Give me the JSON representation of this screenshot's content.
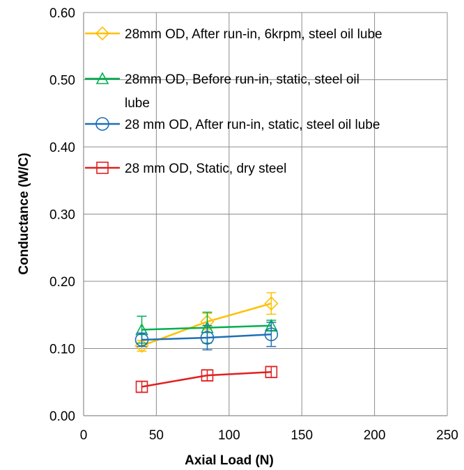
{
  "chart_data": {
    "type": "line",
    "xlabel": "Axial Load (N)",
    "ylabel": "Conductance (W/C)",
    "xlim": [
      0,
      250
    ],
    "ylim": [
      0,
      0.6
    ],
    "x_ticks": [
      "0",
      "50",
      "100",
      "150",
      "200",
      "250"
    ],
    "y_ticks": [
      "0.00",
      "0.10",
      "0.20",
      "0.30",
      "0.40",
      "0.50",
      "0.60"
    ],
    "grid": true,
    "legend_position": "top-right",
    "series": [
      {
        "name": "28mm OD, After run-in, 6krpm, steel oil lube",
        "legend_lines": [
          "28mm OD, After run-in, 6krpm, steel oil lube"
        ],
        "marker": "diamond",
        "color": "#FFC000",
        "x": [
          40,
          85,
          129
        ],
        "y": [
          0.104,
          0.14,
          0.167
        ],
        "err": [
          0.008,
          0.012,
          0.016
        ]
      },
      {
        "name": "28mm OD, Before run-in, static, steel oil lube",
        "legend_lines": [
          "28mm OD, Before run-in, static, steel oil",
          "lube"
        ],
        "marker": "triangle",
        "color": "#00B050",
        "x": [
          40,
          85,
          129
        ],
        "y": [
          0.128,
          0.131,
          0.134
        ],
        "err": [
          0.02,
          0.023,
          0.008
        ]
      },
      {
        "name": "28 mm OD, After run-in, static, steel oil lube",
        "legend_lines": [
          "28 mm OD, After run-in, static, steel oil lube"
        ],
        "marker": "circle",
        "color": "#1F6FB5",
        "x": [
          40,
          85,
          129
        ],
        "y": [
          0.113,
          0.116,
          0.121
        ],
        "err": [
          0.01,
          0.018,
          0.018
        ]
      },
      {
        "name": "28 mm OD, Static, dry steel",
        "legend_lines": [
          "28 mm OD, Static, dry steel"
        ],
        "marker": "square",
        "color": "#E02020",
        "x": [
          40,
          85,
          129
        ],
        "y": [
          0.043,
          0.06,
          0.065
        ],
        "err": [
          0.008,
          0.008,
          0.008
        ]
      }
    ]
  }
}
